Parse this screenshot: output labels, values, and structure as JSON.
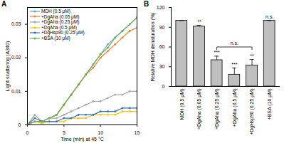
{
  "chart_data": [
    {
      "type": "line",
      "title": "A",
      "x_label": "Time (min) at 45 °C",
      "y_label": "Light scattering (A340)",
      "x": [
        0,
        1,
        2,
        3,
        4,
        5,
        6,
        7,
        8,
        9,
        10,
        11,
        12,
        13,
        14,
        15
      ],
      "xlim": [
        0,
        15
      ],
      "xticks": [
        0,
        5,
        10,
        15
      ],
      "ylim": [
        0,
        0.035
      ],
      "yticks": [
        0,
        0.01,
        0.02,
        0.03
      ],
      "marker": "circle",
      "legend": "top-left",
      "series": [
        {
          "name": "MDH (0.5 μM)",
          "color": "#5ea9dd",
          "values": [
            0,
            0.001,
            0.001,
            0.002,
            0.003,
            0.006,
            0.009,
            0.012,
            0.015,
            0.018,
            0.021,
            0.024,
            0.026,
            0.028,
            0.03,
            0.032
          ]
        },
        {
          "name": "+DgAha (0.05 μM)",
          "color": "#f4812a",
          "values": [
            0,
            0.001,
            0.001,
            0.002,
            0.003,
            0.006,
            0.009,
            0.012,
            0.015,
            0.017,
            0.02,
            0.022,
            0.024,
            0.026,
            0.028,
            0.029
          ]
        },
        {
          "name": "+DgAha (0.25 μM)",
          "color": "#a6a6a6",
          "values": [
            0,
            0.003,
            0.001,
            0.002,
            0.002,
            0.003,
            0.004,
            0.005,
            0.006,
            0.007,
            0.007,
            0.008,
            0.009,
            0.009,
            0.01,
            0.01
          ]
        },
        {
          "name": "+DgAha (0.5 μM)",
          "color": "#f5c400",
          "values": [
            0,
            0.001,
            0.0005,
            0.001,
            0.001,
            0.001,
            0.002,
            0.002,
            0.002,
            0.003,
            0.003,
            0.003,
            0.003,
            0.004,
            0.004,
            0.004
          ]
        },
        {
          "name": "+DgHsp90 (0.25 μM)",
          "color": "#2f6fc0",
          "values": [
            0,
            0.002,
            0.001,
            0.001,
            0.001,
            0.002,
            0.002,
            0.003,
            0.003,
            0.003,
            0.004,
            0.004,
            0.004,
            0.005,
            0.005,
            0.005
          ]
        },
        {
          "name": "+BSA (10 μM)",
          "color": "#6ab04c",
          "values": [
            0,
            0.001,
            0.001,
            0.002,
            0.003,
            0.006,
            0.009,
            0.012,
            0.015,
            0.018,
            0.021,
            0.023,
            0.026,
            0.028,
            0.03,
            0.032
          ]
        }
      ]
    },
    {
      "type": "bar",
      "title": "B",
      "y_label": "Relative MDH denaturation (%)",
      "categories": [
        "MDH (0.5 μM)",
        "+DgAha (0.05 μM)",
        "+DgAha (0.25 μM)",
        "+DgAha (0.5 μM)",
        "+DgHsp90 (0.25 μM)",
        "+BSA (10 μM)"
      ],
      "values": [
        100,
        91,
        40,
        18,
        32,
        100
      ],
      "errors": [
        0,
        2,
        6,
        10,
        9,
        0
      ],
      "significance": [
        null,
        "**",
        "***",
        "***",
        "**",
        "n.s."
      ],
      "brackets": [
        {
          "from": "+DgAha (0.25 μM)",
          "to": "+DgHsp90 (0.25 μM)",
          "label": "n.s."
        }
      ],
      "ylim": [
        0,
        120
      ],
      "yticks": [
        0,
        30,
        60,
        90,
        120
      ],
      "color": "#bfbfbf"
    }
  ]
}
